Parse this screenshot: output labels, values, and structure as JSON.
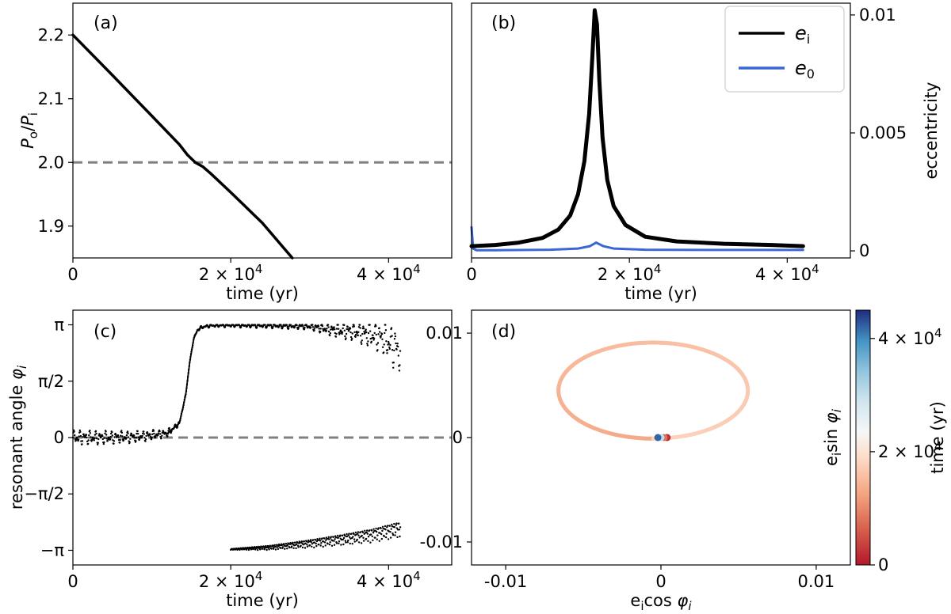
{
  "chart_data": [
    {
      "panel": "a",
      "type": "line",
      "panel_label": "(a)",
      "xlabel": "time (yr)",
      "ylabel": "P_o/P_i",
      "xlim": [
        0,
        48000
      ],
      "ylim": [
        1.85,
        2.25
      ],
      "x_ticks": [
        {
          "value": 0,
          "label": "0"
        },
        {
          "value": 20000,
          "label": "2 × 10^4"
        },
        {
          "value": 40000,
          "label": "4 × 10^4"
        }
      ],
      "y_ticks": [
        {
          "value": 1.9,
          "label": "1.9"
        },
        {
          "value": 2.0,
          "label": "2.0"
        },
        {
          "value": 2.1,
          "label": "2.1"
        },
        {
          "value": 2.2,
          "label": "2.2"
        }
      ],
      "reference_line": {
        "y": 2.0,
        "style": "dashed",
        "color": "#808080"
      },
      "series": [
        {
          "name": "period ratio",
          "color": "#000000",
          "x": [
            0,
            5000,
            10000,
            13500,
            14500,
            15500,
            16500,
            17500,
            20000,
            24000,
            27800
          ],
          "y": [
            2.2,
            2.137,
            2.073,
            2.028,
            2.012,
            2.0,
            1.993,
            1.982,
            1.953,
            1.905,
            1.85
          ]
        }
      ]
    },
    {
      "panel": "b",
      "type": "line",
      "panel_label": "(b)",
      "xlabel": "time (yr)",
      "ylabel": "eccentricity",
      "xlim": [
        0,
        48000
      ],
      "ylim": [
        -0.0003,
        0.0105
      ],
      "x_ticks": [
        {
          "value": 0,
          "label": "0"
        },
        {
          "value": 20000,
          "label": "2 × 10^4"
        },
        {
          "value": 40000,
          "label": "4 × 10^4"
        }
      ],
      "y_ticks": [
        {
          "value": 0,
          "label": "0"
        },
        {
          "value": 0.005,
          "label": "0.005"
        },
        {
          "value": 0.01,
          "label": "0.01"
        }
      ],
      "legend": {
        "position": "top-right",
        "entries": [
          {
            "label": "e_i",
            "color": "#000000"
          },
          {
            "label": "e_0",
            "color": "#3a66d6"
          }
        ]
      },
      "series": [
        {
          "name": "e_i",
          "color": "#000000",
          "x": [
            0,
            3000,
            6000,
            9000,
            11000,
            12500,
            13500,
            14300,
            14900,
            15300,
            15600,
            15900,
            16200,
            16600,
            17200,
            18000,
            19500,
            22000,
            26000,
            32000,
            38000,
            42000
          ],
          "y": [
            0.0002,
            0.00025,
            0.00035,
            0.00055,
            0.0009,
            0.0015,
            0.0024,
            0.0038,
            0.0058,
            0.0082,
            0.0102,
            0.0096,
            0.0072,
            0.0048,
            0.003,
            0.0019,
            0.0011,
            0.0006,
            0.0004,
            0.0003,
            0.00025,
            0.0002
          ]
        },
        {
          "name": "e_0",
          "color": "#3a66d6",
          "x": [
            0,
            200,
            600,
            3000,
            10000,
            13500,
            15000,
            15800,
            16700,
            18000,
            22000,
            30000,
            42000
          ],
          "y": [
            0.001,
            0.0001,
            3e-05,
            3e-05,
            5e-05,
            0.0001,
            0.0002,
            0.00035,
            0.0002,
            0.0001,
            5e-05,
            4e-05,
            4e-05
          ]
        }
      ]
    },
    {
      "panel": "c",
      "type": "scatter",
      "panel_label": "(c)",
      "xlabel": "time (yr)",
      "ylabel": "resonant angle φ_i",
      "xlim": [
        0,
        48000
      ],
      "ylim": [
        -3.55,
        3.55
      ],
      "x_ticks": [
        {
          "value": 0,
          "label": "0"
        },
        {
          "value": 20000,
          "label": "2 × 10^4"
        },
        {
          "value": 40000,
          "label": "4 × 10^4"
        }
      ],
      "y_ticks": [
        {
          "value": -3.14159,
          "label": "−π"
        },
        {
          "value": -1.5708,
          "label": "−π/2"
        },
        {
          "value": 0,
          "label": "0"
        },
        {
          "value": 1.5708,
          "label": "π/2"
        },
        {
          "value": 3.14159,
          "label": "π"
        }
      ],
      "reference_line": {
        "y": 0,
        "style": "dashed",
        "color": "#808080"
      },
      "series": [
        {
          "name": "φ_i mean track",
          "color": "#000000",
          "x": [
            0,
            4000,
            8000,
            12000,
            13500,
            14300,
            14800,
            15300,
            15800,
            16400,
            17500,
            20000,
            25000,
            30000,
            33000,
            36000,
            39000,
            41500
          ],
          "y": [
            0,
            0,
            0.02,
            0.12,
            0.4,
            1.2,
            2.1,
            2.75,
            3.0,
            3.08,
            3.12,
            3.13,
            3.12,
            3.1,
            3.0,
            2.95,
            2.8,
            2.4
          ]
        },
        {
          "name": "φ_i amplitude",
          "color": "#000000",
          "x": [
            0,
            4000,
            8000,
            12000,
            13500,
            14300,
            14800,
            15300,
            15800,
            16400,
            17500,
            20000,
            25000,
            30000,
            33000,
            36000,
            39000,
            41500
          ],
          "y": [
            0.22,
            0.2,
            0.17,
            0.12,
            0.06,
            0.03,
            0.03,
            0.03,
            0.05,
            0.05,
            0.05,
            0.06,
            0.08,
            0.1,
            0.2,
            0.3,
            0.45,
            0.7
          ]
        },
        {
          "name": "φ_i wrapped branch",
          "color": "#000000",
          "x": [
            20000,
            25000,
            30000,
            34000,
            38000,
            41500
          ],
          "y": [
            -3.12,
            -3.08,
            -2.98,
            -2.88,
            -2.76,
            -2.6
          ]
        }
      ]
    },
    {
      "panel": "d",
      "type": "scatter",
      "panel_label": "(d)",
      "xlabel": "e_i cos φ_i",
      "ylabel": "e_i sin φ_i",
      "xlim": [
        -0.0122,
        0.0122
      ],
      "ylim": [
        -0.0122,
        0.0122
      ],
      "x_ticks": [
        {
          "value": -0.01,
          "label": "-0.01"
        },
        {
          "value": 0,
          "label": "0"
        },
        {
          "value": 0.01,
          "label": "0.01"
        }
      ],
      "y_ticks": [
        {
          "value": -0.01,
          "label": "-0.01"
        },
        {
          "value": 0,
          "label": "0"
        },
        {
          "value": 0.01,
          "label": "0.01"
        }
      ],
      "colorbar": {
        "label": "time (yr)",
        "range": [
          0,
          45000
        ],
        "colormap": [
          "#b2182b",
          "#ef8a62",
          "#fddbc7",
          "#f7f7f7",
          "#d1e5f0",
          "#67a9cf",
          "#2166ac",
          "#202080"
        ],
        "ticks": [
          {
            "value": 0,
            "label": "0"
          },
          {
            "value": 20000,
            "label": "2 × 10^4"
          },
          {
            "value": 40000,
            "label": "4 × 10^4"
          }
        ]
      },
      "series": [
        {
          "name": "trajectory",
          "type": "loop",
          "center": [
            -0.0005,
            0.0045
          ],
          "radius_x": 0.0061,
          "radius_y": 0.0046,
          "t_start": 13000,
          "t_end": 18000
        },
        {
          "name": "cluster",
          "x": [
            0.0004,
            0.0002,
            0.0,
            -0.0002
          ],
          "y": [
            0.0,
            0.0,
            0.0,
            0.0
          ],
          "t": [
            2000,
            8000,
            30000,
            42000
          ]
        }
      ]
    }
  ]
}
